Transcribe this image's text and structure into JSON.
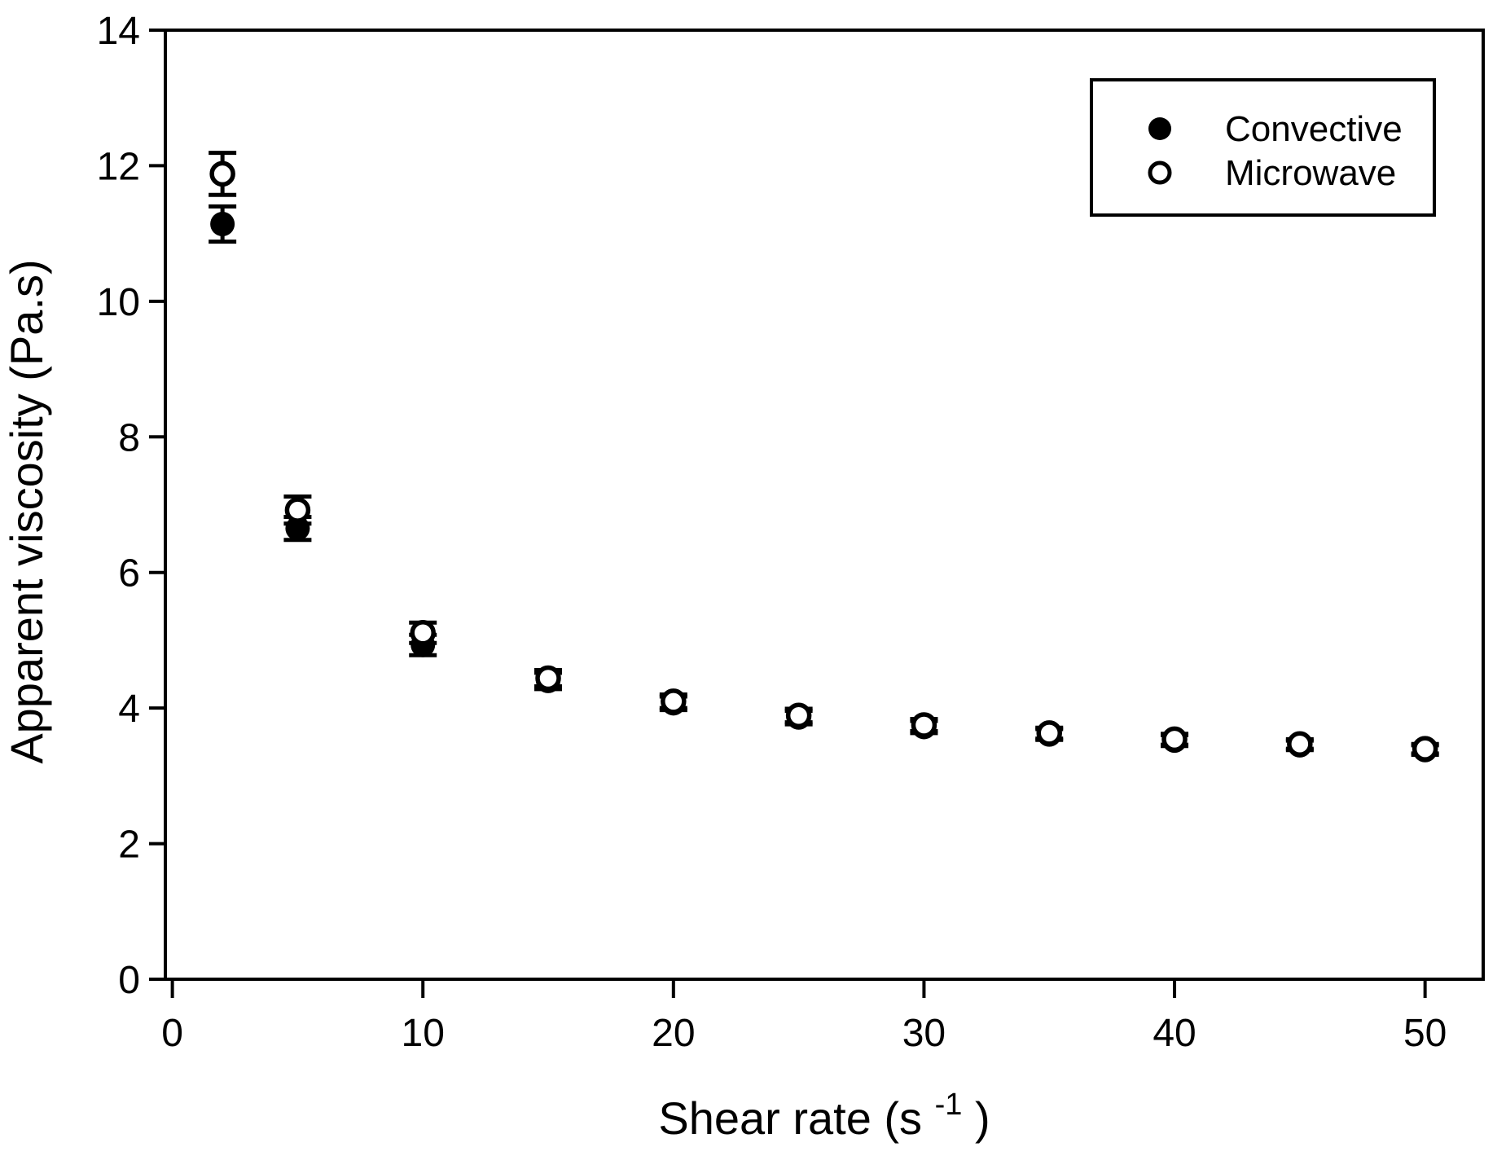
{
  "figure": {
    "background": "#ffffff",
    "foreground": "#000000"
  },
  "chart_data": {
    "type": "scatter",
    "title": "",
    "xlabel": "Shear rate (s⁻¹)",
    "xlabel_parts": {
      "base": "Shear rate (s",
      "sup": "-1",
      "close": ")"
    },
    "ylabel": "Apparent viscosity (Pa.s)",
    "xlim": [
      -0.28,
      52.32
    ],
    "ylim": [
      0,
      14
    ],
    "xticks": [
      0,
      10,
      20,
      30,
      40,
      50
    ],
    "yticks": [
      0,
      2,
      4,
      6,
      8,
      10,
      12,
      14
    ],
    "grid": false,
    "legend_position": "top-right",
    "x": [
      2,
      5,
      10,
      15,
      20,
      25,
      30,
      35,
      40,
      45,
      50
    ],
    "series": [
      {
        "name": "Convective",
        "marker": "filled-circle",
        "color": "#000000",
        "values": [
          11.14,
          6.65,
          4.93,
          4.4,
          4.07,
          3.86,
          3.72,
          3.61,
          3.52,
          3.45,
          3.38
        ],
        "errors": [
          0.26,
          0.17,
          0.15,
          0.12,
          0.1,
          0.1,
          0.09,
          0.08,
          0.08,
          0.07,
          0.07
        ]
      },
      {
        "name": "Microwave",
        "marker": "open-circle",
        "color": "#000000",
        "values": [
          11.88,
          6.92,
          5.11,
          4.44,
          4.1,
          3.89,
          3.75,
          3.63,
          3.54,
          3.47,
          3.4
        ],
        "errors": [
          0.31,
          0.2,
          0.15,
          0.12,
          0.1,
          0.1,
          0.09,
          0.08,
          0.08,
          0.07,
          0.07
        ]
      }
    ]
  }
}
